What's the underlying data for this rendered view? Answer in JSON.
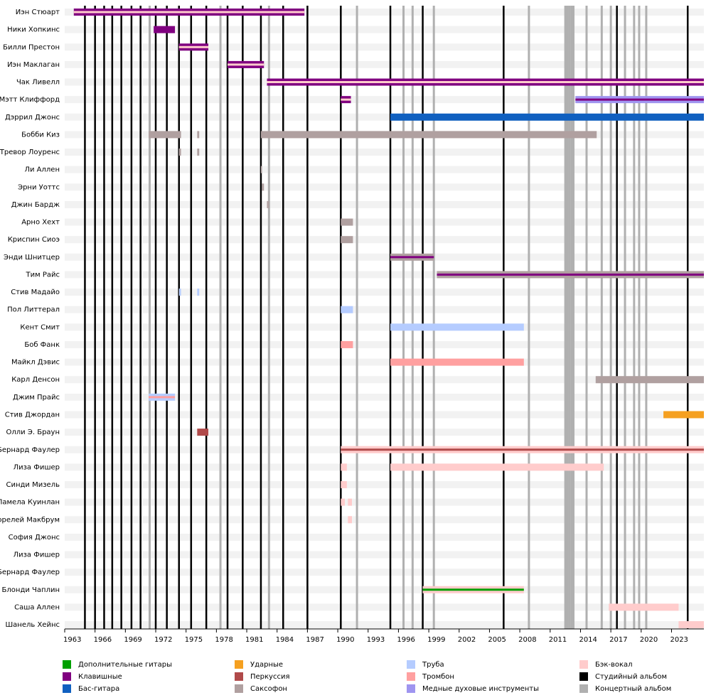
{
  "chart_data": {
    "type": "timeline",
    "xlim": [
      1963,
      2026.2
    ],
    "xticks": [
      1963,
      1966,
      1969,
      1972,
      1975,
      1978,
      1981,
      1984,
      1987,
      1990,
      1993,
      1996,
      1999,
      2002,
      2005,
      2008,
      2011,
      2014,
      2017,
      2020,
      2023
    ],
    "roles": [
      {
        "name": "Дополнительные гитары",
        "color": "#00a000"
      },
      {
        "name": "Клавишные",
        "color": "#800080"
      },
      {
        "name": "Бас-гитара",
        "color": "#1060c0"
      },
      {
        "name": "Ударные",
        "color": "#f5a020"
      },
      {
        "name": "Перкуссия",
        "color": "#b04a4a"
      },
      {
        "name": "Саксофон",
        "color": "#b0a0a0"
      },
      {
        "name": "Труба",
        "color": "#b5ccff"
      },
      {
        "name": "Тромбон",
        "color": "#ffa0a0"
      },
      {
        "name": "Медные духовые инструменты",
        "color": "#9f95f0"
      },
      {
        "name": "Бэк-вокал",
        "color": "#ffcccc"
      }
    ],
    "albums": [
      {
        "name": "Студийный альбом",
        "color": "#000000",
        "values": [
          1965,
          1966,
          1966.9,
          1967.7,
          1968.6,
          1969.6,
          1970.5,
          1972,
          1973.1,
          1974.3,
          1975.5,
          1977,
          1979.1,
          1980.6,
          1982.4,
          1984.6,
          1987,
          1990.3,
          1995.2,
          1998.4,
          2006.4,
          2017.6,
          2024.6
        ]
      },
      {
        "name": "Концертный альбом",
        "color": "#b0b0b0",
        "values": [
          1971.4,
          1978.4,
          1983.2,
          1991.9,
          1996.5,
          1997.4,
          1999.5,
          2008.9,
          2012.5,
          2012.7,
          2012.9,
          2013.1,
          2013.3,
          2014.6,
          2016.1,
          2017,
          2018.4,
          2019.3,
          2019.8,
          2020.5
        ]
      }
    ],
    "members": [
      {
        "name": "Иэн Стюарт",
        "periods": [
          {
            "start": 1963.9,
            "end": 1986.7,
            "roles": [
              "Клавишные",
              "Бэк-вокал"
            ]
          }
        ]
      },
      {
        "name": "Ники Хопкинс",
        "periods": [
          {
            "start": 1971.8,
            "end": 1973.9,
            "roles": [
              "Клавишные"
            ]
          }
        ]
      },
      {
        "name": "Билли Престон",
        "periods": [
          {
            "start": 1974.3,
            "end": 1977.2,
            "roles": [
              "Клавишные",
              "Бэк-вокал"
            ]
          }
        ]
      },
      {
        "name": "Иэн Маклаган",
        "periods": [
          {
            "start": 1979.1,
            "end": 1982.7,
            "roles": [
              "Клавишные",
              "Бэк-вокал"
            ]
          }
        ]
      },
      {
        "name": "Чак Ливелл",
        "periods": [
          {
            "start": 1983.0,
            "end": 2026.2,
            "roles": [
              "Клавишные",
              "Бэк-вокал"
            ]
          }
        ]
      },
      {
        "name": "Мэтт Клиффорд",
        "periods": [
          {
            "start": 1990.3,
            "end": 1991.3,
            "roles": [
              "Клавишные",
              "Бэк-вокал"
            ]
          },
          {
            "start": 2013.5,
            "end": 2026.2,
            "roles": [
              "Медные духовые инструменты",
              "Клавишные"
            ]
          }
        ]
      },
      {
        "name": "Дэррил Джонс",
        "periods": [
          {
            "start": 1995.2,
            "end": 2026.2,
            "roles": [
              "Бас-гитара"
            ]
          }
        ]
      },
      {
        "name": "Бобби Киз",
        "periods": [
          {
            "start": 1971.3,
            "end": 1974.5,
            "roles": [
              "Саксофон"
            ]
          },
          {
            "start": 1976.1,
            "end": 1976.3,
            "roles": [
              "Саксофон"
            ]
          },
          {
            "start": 1982.4,
            "end": 2015.6,
            "roles": [
              "Саксофон"
            ]
          }
        ]
      },
      {
        "name": "Тревор Лоуренс",
        "periods": [
          {
            "start": 1974.3,
            "end": 1974.5,
            "roles": [
              "Саксофон"
            ]
          },
          {
            "start": 1976.1,
            "end": 1976.3,
            "roles": [
              "Саксофон"
            ]
          }
        ]
      },
      {
        "name": "Ли Аллен",
        "periods": [
          {
            "start": 1982.4,
            "end": 1982.5,
            "roles": [
              "Саксофон"
            ]
          }
        ]
      },
      {
        "name": "Эрни Уоттс",
        "periods": [
          {
            "start": 1982.5,
            "end": 1982.7,
            "roles": [
              "Саксофон"
            ]
          }
        ]
      },
      {
        "name": "Джин Бардж",
        "periods": [
          {
            "start": 1983.0,
            "end": 1983.2,
            "roles": [
              "Саксофон"
            ]
          }
        ]
      },
      {
        "name": "Арно Хехт",
        "periods": [
          {
            "start": 1990.3,
            "end": 1991.5,
            "roles": [
              "Саксофон"
            ]
          }
        ]
      },
      {
        "name": "Криспин Сиоэ",
        "periods": [
          {
            "start": 1990.3,
            "end": 1991.5,
            "roles": [
              "Саксофон"
            ]
          }
        ]
      },
      {
        "name": "Энди Шнитцер",
        "periods": [
          {
            "start": 1995.2,
            "end": 1999.5,
            "roles": [
              "Саксофон",
              "Клавишные"
            ]
          }
        ]
      },
      {
        "name": "Тим Райс",
        "periods": [
          {
            "start": 1999.8,
            "end": 2026.2,
            "roles": [
              "Саксофон",
              "Клавишные"
            ]
          }
        ]
      },
      {
        "name": "Стив Мадайо",
        "periods": [
          {
            "start": 1974.3,
            "end": 1974.5,
            "roles": [
              "Труба"
            ]
          },
          {
            "start": 1976.1,
            "end": 1976.3,
            "roles": [
              "Труба"
            ]
          }
        ]
      },
      {
        "name": "Пол Литтерал",
        "periods": [
          {
            "start": 1990.3,
            "end": 1991.5,
            "roles": [
              "Труба"
            ]
          }
        ]
      },
      {
        "name": "Кент Смит",
        "periods": [
          {
            "start": 1995.2,
            "end": 2008.4,
            "roles": [
              "Труба"
            ]
          }
        ]
      },
      {
        "name": "Боб Фанк",
        "periods": [
          {
            "start": 1990.3,
            "end": 1991.5,
            "roles": [
              "Тромбон"
            ]
          }
        ]
      },
      {
        "name": "Майкл Дэвис",
        "periods": [
          {
            "start": 1995.2,
            "end": 2008.4,
            "roles": [
              "Тромбон"
            ]
          }
        ]
      },
      {
        "name": "Карл Денсон",
        "periods": [
          {
            "start": 2015.5,
            "end": 2026.2,
            "roles": [
              "Саксофон"
            ]
          }
        ]
      },
      {
        "name": "Джим Прайс",
        "periods": [
          {
            "start": 1971.3,
            "end": 1973.9,
            "roles": [
              "Труба",
              "Тромбон"
            ]
          }
        ]
      },
      {
        "name": "Стив Джордан",
        "periods": [
          {
            "start": 2022.2,
            "end": 2026.2,
            "roles": [
              "Ударные"
            ]
          }
        ]
      },
      {
        "name": "Олли Э. Браун",
        "periods": [
          {
            "start": 1976.1,
            "end": 1977.2,
            "roles": [
              "Перкуссия"
            ]
          }
        ]
      },
      {
        "name": "Бернард Фаулер",
        "periods": [
          {
            "start": 1990.3,
            "end": 2026.2,
            "roles": [
              "Бэк-вокал",
              "Перкуссия"
            ]
          }
        ]
      },
      {
        "name": "Лиза Фишер",
        "periods": [
          {
            "start": 1990.3,
            "end": 1990.9,
            "roles": [
              "Бэк-вокал"
            ]
          },
          {
            "start": 1995.2,
            "end": 2016.3,
            "roles": [
              "Бэк-вокал"
            ]
          }
        ]
      },
      {
        "name": "Синди Мизель",
        "periods": [
          {
            "start": 1990.3,
            "end": 1990.9,
            "roles": [
              "Бэк-вокал"
            ]
          }
        ]
      },
      {
        "name": "Памела Куинлан",
        "periods": [
          {
            "start": 1990.3,
            "end": 1990.7,
            "roles": [
              "Бэк-вокал"
            ]
          },
          {
            "start": 1991.0,
            "end": 1991.4,
            "roles": [
              "Бэк-вокал"
            ]
          }
        ]
      },
      {
        "name": "Лорелей Макбрум",
        "periods": [
          {
            "start": 1991.0,
            "end": 1991.4,
            "roles": [
              "Бэк-вокал"
            ]
          }
        ]
      },
      {
        "name": "София Джонс",
        "periods": []
      },
      {
        "name": "Лиза Фишер",
        "periods": []
      },
      {
        "name": "Бернард Фаулер",
        "periods": []
      },
      {
        "name": "Блонди Чаплин",
        "periods": [
          {
            "start": 1998.4,
            "end": 2008.4,
            "roles": [
              "Бэк-вокал",
              "Дополнительные гитары"
            ]
          }
        ]
      },
      {
        "name": "Саша Аллен",
        "periods": [
          {
            "start": 2016.8,
            "end": 2023.7,
            "roles": [
              "Бэк-вокал"
            ]
          }
        ]
      },
      {
        "name": "Шанель Хейнс",
        "periods": [
          {
            "start": 2023.7,
            "end": 2026.2,
            "roles": [
              "Бэк-вокал"
            ]
          }
        ]
      }
    ]
  }
}
